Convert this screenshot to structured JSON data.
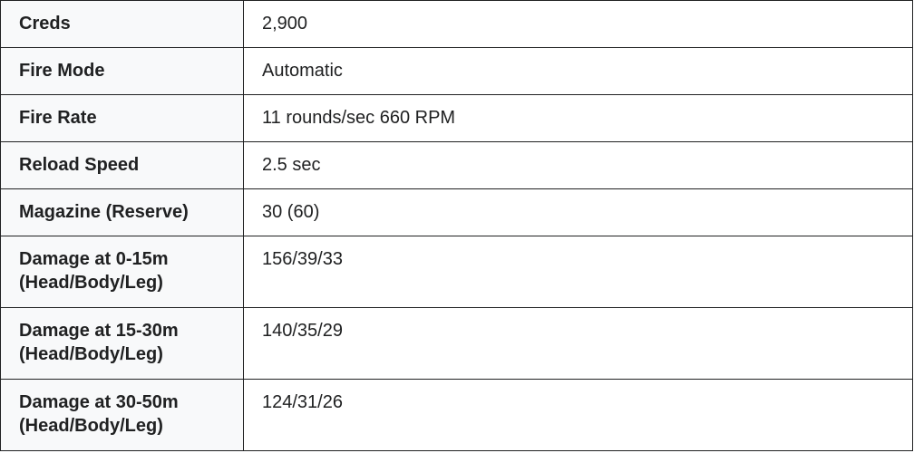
{
  "rows": [
    {
      "label": "Creds",
      "value": "2,900"
    },
    {
      "label": "Fire Mode",
      "value": "Automatic"
    },
    {
      "label": "Fire Rate",
      "value": "11 rounds/sec 660 RPM"
    },
    {
      "label": "Reload Speed",
      "value": "2.5 sec"
    },
    {
      "label": "Magazine (Reserve)",
      "value": "30 (60)"
    },
    {
      "label": "Damage at 0-15m",
      "label2": "(Head/Body/Leg)",
      "value": "156/39/33"
    },
    {
      "label": "Damage at 15-30m",
      "label2": "(Head/Body/Leg)",
      "value": "140/35/29"
    },
    {
      "label": "Damage at 30-50m",
      "label2": "(Head/Body/Leg)",
      "value": "124/31/26"
    }
  ]
}
